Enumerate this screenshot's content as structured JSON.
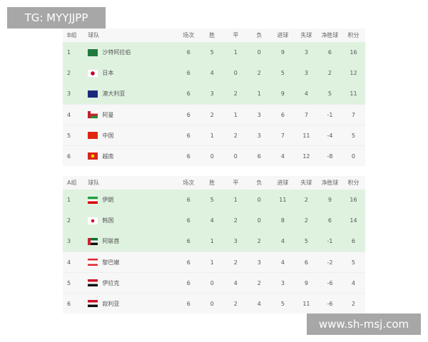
{
  "watermark_top": "TG: MYYJJPP",
  "watermark_bottom": "www.sh-msj.com",
  "columns": [
    "场次",
    "胜",
    "平",
    "负",
    "进球",
    "失球",
    "净胜球",
    "积分"
  ],
  "team_header": "球队",
  "groups": [
    {
      "name": "B组",
      "rows": [
        {
          "rank": "1",
          "team": "沙特阿拉伯",
          "flag": "saudi-arabia",
          "qualified": true,
          "stats": [
            "6",
            "5",
            "1",
            "0",
            "9",
            "3",
            "6",
            "16"
          ]
        },
        {
          "rank": "2",
          "team": "日本",
          "flag": "japan",
          "qualified": true,
          "stats": [
            "6",
            "4",
            "0",
            "2",
            "5",
            "3",
            "2",
            "12"
          ]
        },
        {
          "rank": "3",
          "team": "澳大利亚",
          "flag": "australia",
          "qualified": true,
          "stats": [
            "6",
            "3",
            "2",
            "1",
            "9",
            "4",
            "5",
            "11"
          ]
        },
        {
          "rank": "4",
          "team": "阿曼",
          "flag": "oman",
          "qualified": false,
          "stats": [
            "6",
            "2",
            "1",
            "3",
            "6",
            "7",
            "-1",
            "7"
          ]
        },
        {
          "rank": "5",
          "team": "中国",
          "flag": "china",
          "qualified": false,
          "stats": [
            "6",
            "1",
            "2",
            "3",
            "7",
            "11",
            "-4",
            "5"
          ]
        },
        {
          "rank": "6",
          "team": "越南",
          "flag": "vietnam",
          "qualified": false,
          "stats": [
            "6",
            "0",
            "0",
            "6",
            "4",
            "12",
            "-8",
            "0"
          ]
        }
      ]
    },
    {
      "name": "A组",
      "rows": [
        {
          "rank": "1",
          "team": "伊朗",
          "flag": "iran",
          "qualified": true,
          "stats": [
            "6",
            "5",
            "1",
            "0",
            "11",
            "2",
            "9",
            "16"
          ]
        },
        {
          "rank": "2",
          "team": "韩国",
          "flag": "south-korea",
          "qualified": true,
          "stats": [
            "6",
            "4",
            "2",
            "0",
            "8",
            "2",
            "6",
            "14"
          ]
        },
        {
          "rank": "3",
          "team": "阿联酋",
          "flag": "uae",
          "qualified": true,
          "stats": [
            "6",
            "1",
            "3",
            "2",
            "4",
            "5",
            "-1",
            "6"
          ]
        },
        {
          "rank": "4",
          "team": "黎巴嫩",
          "flag": "lebanon",
          "qualified": false,
          "stats": [
            "6",
            "1",
            "2",
            "3",
            "4",
            "6",
            "-2",
            "5"
          ]
        },
        {
          "rank": "5",
          "team": "伊拉克",
          "flag": "iraq",
          "qualified": false,
          "stats": [
            "6",
            "0",
            "4",
            "2",
            "3",
            "9",
            "-6",
            "4"
          ]
        },
        {
          "rank": "6",
          "team": "叙利亚",
          "flag": "syria",
          "qualified": false,
          "stats": [
            "6",
            "0",
            "2",
            "4",
            "5",
            "11",
            "-6",
            "2"
          ]
        }
      ]
    }
  ]
}
